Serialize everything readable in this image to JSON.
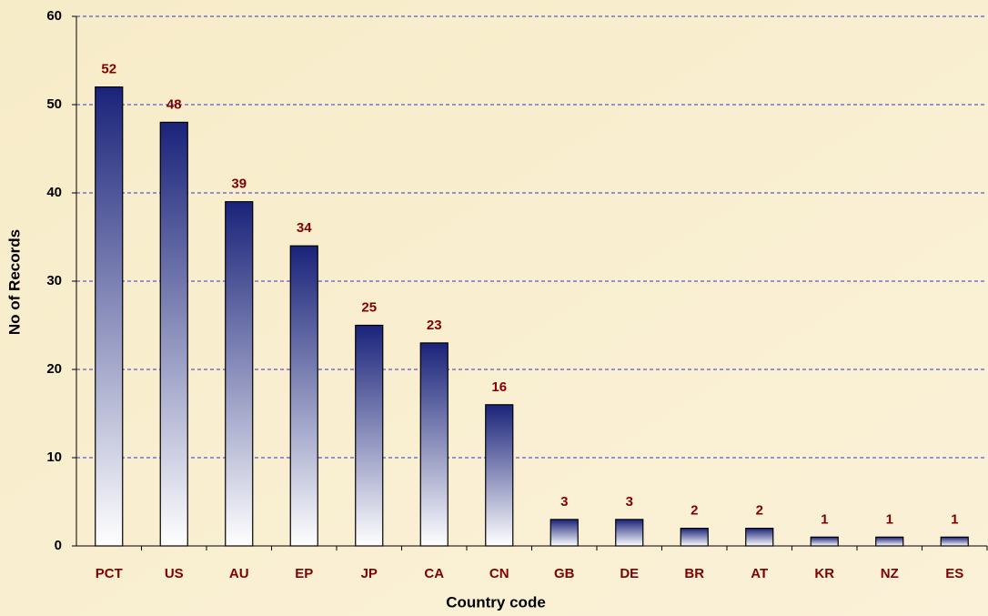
{
  "chart_data": {
    "type": "bar",
    "categories": [
      "PCT",
      "US",
      "AU",
      "EP",
      "JP",
      "CA",
      "CN",
      "GB",
      "DE",
      "BR",
      "AT",
      "KR",
      "NZ",
      "ES"
    ],
    "values": [
      52,
      48,
      39,
      34,
      25,
      23,
      16,
      3,
      3,
      2,
      2,
      1,
      1,
      1
    ],
    "color": "#1a237a",
    "x_label": "Country code",
    "y_label": "No of Records",
    "ylim": [
      0,
      60
    ],
    "yticks": [
      0,
      10,
      20,
      30,
      40,
      50,
      60
    ],
    "grid": true
  }
}
